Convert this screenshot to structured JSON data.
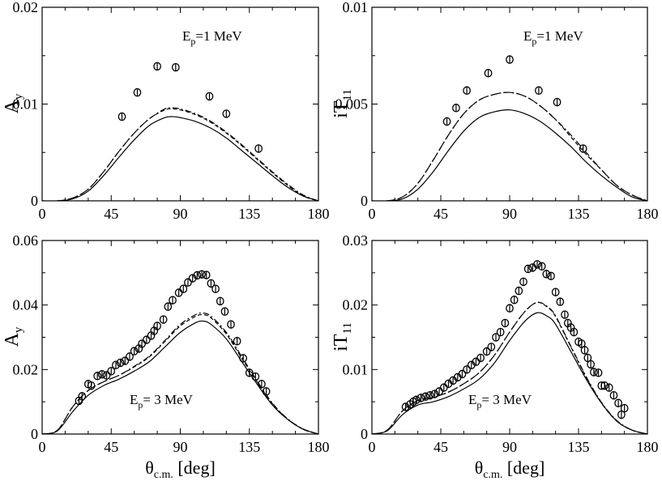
{
  "chart_data": [
    {
      "type": "line",
      "xlim": [
        0,
        180
      ],
      "ylim": [
        0,
        0.02
      ],
      "xticks": [
        0,
        45,
        90,
        135,
        180
      ],
      "xtick_labels": [
        "0",
        "45",
        "90",
        "135",
        "180"
      ],
      "yticks": [
        0,
        0.01,
        0.02
      ],
      "ytick_labels": [
        "0",
        "0.01",
        "0.02"
      ],
      "ylabel": {
        "main": "A",
        "sub": "y"
      },
      "xlabel": null,
      "annotation": {
        "main": "E",
        "sub": "p",
        "rest": "=1 MeV"
      },
      "series": [
        {
          "style": "solid",
          "x": [
            0,
            10,
            20,
            30,
            40,
            50,
            60,
            70,
            80,
            85,
            90,
            100,
            110,
            120,
            130,
            140,
            150,
            160,
            170,
            180
          ],
          "y": [
            0,
            0,
            0.0002,
            0.001,
            0.0026,
            0.0045,
            0.0063,
            0.0078,
            0.0086,
            0.0087,
            0.0086,
            0.0082,
            0.0075,
            0.0065,
            0.0052,
            0.0039,
            0.0026,
            0.0014,
            0.0005,
            0
          ]
        },
        {
          "style": "dashed",
          "x": [
            0,
            10,
            20,
            30,
            40,
            50,
            60,
            70,
            80,
            85,
            90,
            100,
            110,
            120,
            130,
            140,
            150,
            160,
            170,
            180
          ],
          "y": [
            0,
            0,
            0.0003,
            0.0012,
            0.003,
            0.0051,
            0.007,
            0.0085,
            0.0094,
            0.0095,
            0.0094,
            0.0089,
            0.0081,
            0.007,
            0.0057,
            0.0043,
            0.0029,
            0.0016,
            0.0005,
            0
          ]
        },
        {
          "style": "dashdot",
          "x": [
            0,
            10,
            20,
            30,
            40,
            50,
            60,
            70,
            80,
            85,
            90,
            100,
            110,
            120,
            130,
            140,
            150,
            160,
            170,
            180
          ],
          "y": [
            0,
            0,
            0.0003,
            0.0012,
            0.003,
            0.0051,
            0.007,
            0.0085,
            0.0095,
            0.0096,
            0.0095,
            0.009,
            0.0082,
            0.0071,
            0.0058,
            0.0044,
            0.003,
            0.0017,
            0.0006,
            0
          ]
        }
      ],
      "points": {
        "x": [
          52,
          62,
          75,
          87,
          109,
          120,
          141
        ],
        "y": [
          0.0087,
          0.0112,
          0.0139,
          0.0138,
          0.0108,
          0.009,
          0.0054
        ]
      }
    },
    {
      "type": "line",
      "xlim": [
        0,
        180
      ],
      "ylim": [
        0,
        0.01
      ],
      "xticks": [
        0,
        45,
        90,
        135,
        180
      ],
      "xtick_labels": [
        "0",
        "45",
        "90",
        "135",
        "180"
      ],
      "yticks": [
        0,
        0.005,
        0.01
      ],
      "ytick_labels": [
        "0",
        "0.005",
        "0.01"
      ],
      "ylabel": {
        "main": "iT",
        "sub": "11"
      },
      "xlabel": null,
      "annotation": {
        "main": "E",
        "sub": "p",
        "rest": "=1 MeV"
      },
      "series": [
        {
          "style": "solid",
          "x": [
            0,
            10,
            20,
            30,
            40,
            50,
            60,
            70,
            80,
            90,
            100,
            110,
            120,
            130,
            140,
            150,
            160,
            170,
            180
          ],
          "y": [
            0,
            0,
            0.0001,
            0.0006,
            0.0015,
            0.0026,
            0.0036,
            0.0043,
            0.0046,
            0.0047,
            0.0045,
            0.0041,
            0.0035,
            0.0028,
            0.002,
            0.0013,
            0.0007,
            0.0002,
            0
          ]
        },
        {
          "style": "dashed",
          "x": [
            0,
            10,
            20,
            30,
            40,
            50,
            60,
            70,
            80,
            90,
            100,
            110,
            120,
            130,
            140,
            150,
            160,
            170,
            180
          ],
          "y": [
            0,
            0,
            0.0002,
            0.0009,
            0.0021,
            0.0034,
            0.0045,
            0.0052,
            0.0055,
            0.0056,
            0.0054,
            0.0049,
            0.0042,
            0.0033,
            0.0024,
            0.0016,
            0.0008,
            0.0003,
            0
          ]
        },
        {
          "style": "dashdot",
          "x": [
            0,
            10,
            20,
            30,
            40,
            50,
            60,
            70,
            80,
            90,
            100,
            110,
            120,
            130,
            140,
            150,
            160,
            170,
            180
          ],
          "y": [
            0,
            0,
            0.0002,
            0.0009,
            0.0021,
            0.0034,
            0.0045,
            0.0052,
            0.0055,
            0.0056,
            0.0054,
            0.0049,
            0.0042,
            0.0034,
            0.0025,
            0.0016,
            0.0008,
            0.0003,
            0
          ]
        }
      ],
      "points": {
        "x": [
          49,
          55,
          62,
          76,
          90,
          109,
          121,
          138
        ],
        "y": [
          0.0041,
          0.0048,
          0.0057,
          0.0066,
          0.0073,
          0.0057,
          0.0051,
          0.0027
        ]
      }
    },
    {
      "type": "line",
      "xlim": [
        0,
        180
      ],
      "ylim": [
        0,
        0.06
      ],
      "xticks": [
        0,
        45,
        90,
        135,
        180
      ],
      "xtick_labels": [
        "0",
        "45",
        "90",
        "135",
        "180"
      ],
      "yticks": [
        0,
        0.02,
        0.04,
        0.06
      ],
      "ytick_labels": [
        "0",
        "0.02",
        "0.04",
        "0.06"
      ],
      "ylabel": {
        "main": "A",
        "sub": "y"
      },
      "xlabel": {
        "main": "θ",
        "sub": "c.m.",
        "rest": " [deg]"
      },
      "annotation": {
        "main": "E",
        "sub": "p",
        "rest": "= 3 MeV"
      },
      "series": [
        {
          "style": "solid",
          "x": [
            0,
            10,
            20,
            30,
            40,
            50,
            60,
            70,
            80,
            90,
            100,
            105,
            110,
            120,
            130,
            140,
            150,
            160,
            170,
            180
          ],
          "y": [
            0,
            0.001,
            0.007,
            0.012,
            0.015,
            0.017,
            0.0195,
            0.0225,
            0.027,
            0.0315,
            0.0345,
            0.035,
            0.034,
            0.0295,
            0.0225,
            0.0155,
            0.009,
            0.0045,
            0.0015,
            0
          ]
        },
        {
          "style": "dashed",
          "x": [
            0,
            10,
            20,
            30,
            40,
            50,
            60,
            70,
            80,
            90,
            100,
            105,
            110,
            120,
            130,
            140,
            150,
            160,
            170,
            180
          ],
          "y": [
            0,
            0.0012,
            0.0085,
            0.0135,
            0.0162,
            0.0182,
            0.0208,
            0.024,
            0.0287,
            0.0335,
            0.0365,
            0.037,
            0.036,
            0.031,
            0.0235,
            0.0162,
            0.0094,
            0.0046,
            0.0015,
            0
          ]
        },
        {
          "style": "dashdot",
          "x": [
            0,
            10,
            20,
            30,
            40,
            50,
            60,
            70,
            80,
            90,
            100,
            105,
            110,
            120,
            130,
            140,
            150,
            160,
            170,
            180
          ],
          "y": [
            0,
            0.0012,
            0.0085,
            0.0135,
            0.0162,
            0.0182,
            0.021,
            0.0242,
            0.029,
            0.034,
            0.037,
            0.0375,
            0.0365,
            0.0315,
            0.024,
            0.0165,
            0.0096,
            0.0047,
            0.0016,
            0
          ]
        }
      ],
      "points": {
        "x": [
          24,
          26,
          30,
          32,
          36,
          39,
          42,
          45,
          48,
          51,
          54,
          57,
          60,
          63,
          65,
          68,
          71,
          73,
          75,
          79,
          82,
          85,
          89,
          92,
          95,
          98,
          101,
          104,
          107,
          110,
          113,
          116,
          119,
          123,
          127,
          131,
          135,
          139,
          143,
          146
        ],
        "y": [
          0.0103,
          0.0117,
          0.0155,
          0.015,
          0.018,
          0.0185,
          0.0182,
          0.0195,
          0.0214,
          0.0221,
          0.0227,
          0.024,
          0.0257,
          0.0265,
          0.028,
          0.0292,
          0.0305,
          0.032,
          0.0335,
          0.0355,
          0.0395,
          0.0415,
          0.0438,
          0.045,
          0.047,
          0.0483,
          0.0492,
          0.0495,
          0.0493,
          0.0467,
          0.045,
          0.0412,
          0.038,
          0.034,
          0.0288,
          0.0235,
          0.019,
          0.0178,
          0.0155,
          0.0132
        ]
      }
    },
    {
      "type": "line",
      "xlim": [
        0,
        180
      ],
      "ylim": [
        0,
        0.03
      ],
      "xticks": [
        0,
        45,
        90,
        135,
        180
      ],
      "xtick_labels": [
        "0",
        "45",
        "90",
        "135",
        "180"
      ],
      "yticks": [
        0,
        0.01,
        0.02,
        0.03
      ],
      "ytick_labels": [
        "0",
        "0.01",
        "0.02",
        "0.03"
      ],
      "ylabel": {
        "main": "iT",
        "sub": "11"
      },
      "xlabel": {
        "main": "θ",
        "sub": "c.m.",
        "rest": " [deg]"
      },
      "annotation": {
        "main": "E",
        "sub": "p",
        "rest": "= 3 MeV"
      },
      "series": [
        {
          "style": "solid",
          "x": [
            0,
            10,
            20,
            30,
            40,
            50,
            60,
            70,
            80,
            90,
            100,
            108,
            115,
            120,
            130,
            140,
            150,
            160,
            170,
            180
          ],
          "y": [
            0,
            0.0005,
            0.003,
            0.0045,
            0.005,
            0.0058,
            0.007,
            0.0085,
            0.011,
            0.0145,
            0.0175,
            0.0188,
            0.0182,
            0.017,
            0.0128,
            0.0085,
            0.0048,
            0.002,
            0.0006,
            0
          ]
        },
        {
          "style": "dashed",
          "x": [
            0,
            10,
            20,
            30,
            40,
            50,
            60,
            70,
            80,
            90,
            100,
            108,
            115,
            120,
            130,
            140,
            150,
            160,
            170,
            180
          ],
          "y": [
            0,
            0.0006,
            0.0036,
            0.0052,
            0.0057,
            0.0065,
            0.0078,
            0.0095,
            0.0122,
            0.0158,
            0.019,
            0.0204,
            0.0196,
            0.0182,
            0.0135,
            0.0088,
            0.0048,
            0.002,
            0.0006,
            0
          ]
        },
        {
          "style": "dashdot",
          "x": [
            0,
            10,
            20,
            30,
            40,
            50,
            60,
            70,
            80,
            90,
            100,
            108,
            115,
            120,
            130,
            140,
            150,
            160,
            170,
            180
          ],
          "y": [
            0,
            0.0006,
            0.0036,
            0.0052,
            0.0057,
            0.0065,
            0.0078,
            0.0095,
            0.0122,
            0.0158,
            0.019,
            0.0204,
            0.0197,
            0.0183,
            0.0136,
            0.0089,
            0.0049,
            0.0021,
            0.0006,
            0
          ]
        }
      ],
      "points": {
        "x": [
          22,
          25,
          27,
          29,
          32,
          35,
          38,
          41,
          44,
          47,
          50,
          53,
          56,
          59,
          62,
          65,
          68,
          71,
          75,
          78,
          81,
          84,
          87,
          90,
          93,
          96,
          99,
          102,
          105,
          108,
          111,
          114,
          117,
          120,
          123,
          126,
          128,
          130,
          132,
          135,
          137,
          139,
          141,
          143,
          145,
          148,
          150,
          152,
          155,
          158,
          161,
          163,
          165
        ],
        "y": [
          0.0042,
          0.0046,
          0.005,
          0.0053,
          0.0056,
          0.0058,
          0.006,
          0.0062,
          0.0066,
          0.0072,
          0.0078,
          0.0083,
          0.0088,
          0.0093,
          0.01,
          0.0107,
          0.0112,
          0.0118,
          0.0128,
          0.0135,
          0.015,
          0.0158,
          0.0172,
          0.0195,
          0.0208,
          0.0222,
          0.0236,
          0.0256,
          0.0258,
          0.0263,
          0.026,
          0.0248,
          0.0245,
          0.022,
          0.0205,
          0.0185,
          0.0172,
          0.0165,
          0.0158,
          0.0143,
          0.014,
          0.013,
          0.0118,
          0.0108,
          0.0096,
          0.0095,
          0.0075,
          0.0075,
          0.0072,
          0.006,
          0.0048,
          0.003,
          0.004
        ]
      }
    }
  ]
}
